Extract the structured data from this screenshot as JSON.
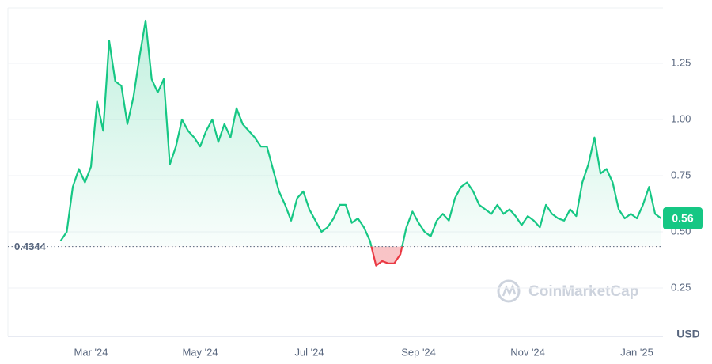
{
  "chart_data": {
    "type": "line",
    "categories": [
      null,
      null,
      null,
      null,
      null,
      "Mar '24",
      null,
      null,
      null,
      null,
      null,
      null,
      null,
      null,
      null,
      null,
      null,
      null,
      null,
      null,
      null,
      null,
      null,
      "May '24",
      null,
      null,
      null,
      null,
      null,
      null,
      null,
      null,
      null,
      null,
      null,
      null,
      null,
      null,
      null,
      null,
      null,
      "Jul '24",
      null,
      null,
      null,
      null,
      null,
      null,
      null,
      null,
      null,
      null,
      null,
      null,
      null,
      null,
      null,
      null,
      null,
      "Sep '24",
      null,
      null,
      null,
      null,
      null,
      null,
      null,
      null,
      null,
      null,
      null,
      null,
      null,
      null,
      null,
      null,
      null,
      "Nov '24",
      null,
      null,
      null,
      null,
      null,
      null,
      null,
      null,
      null,
      null,
      null,
      null,
      null,
      null,
      null,
      null,
      null,
      "Jan '25",
      null,
      null,
      null,
      null
    ],
    "values": [
      0.46,
      0.5,
      0.7,
      0.78,
      0.72,
      0.79,
      1.08,
      0.95,
      1.35,
      1.17,
      1.15,
      0.98,
      1.1,
      1.28,
      1.44,
      1.18,
      1.12,
      1.18,
      0.8,
      0.88,
      1.0,
      0.95,
      0.92,
      0.88,
      0.95,
      1.0,
      0.9,
      0.98,
      0.92,
      1.05,
      0.98,
      0.95,
      0.92,
      0.88,
      0.88,
      0.78,
      0.68,
      0.62,
      0.55,
      0.65,
      0.68,
      0.6,
      0.55,
      0.5,
      0.52,
      0.56,
      0.62,
      0.62,
      0.54,
      0.56,
      0.52,
      0.46,
      0.35,
      0.37,
      0.36,
      0.36,
      0.4,
      0.52,
      0.59,
      0.54,
      0.5,
      0.48,
      0.55,
      0.58,
      0.55,
      0.65,
      0.7,
      0.72,
      0.68,
      0.62,
      0.6,
      0.58,
      0.62,
      0.58,
      0.6,
      0.57,
      0.53,
      0.57,
      0.55,
      0.52,
      0.62,
      0.58,
      0.56,
      0.55,
      0.6,
      0.57,
      0.72,
      0.8,
      0.92,
      0.76,
      0.78,
      0.72,
      0.6,
      0.56,
      0.58,
      0.56,
      0.62,
      0.7,
      0.58,
      0.56
    ],
    "color": "#16c784",
    "negative_color": "#ea3943",
    "reference_value": 0.4344,
    "ylim": [
      0,
      1.5
    ],
    "yticks": [
      0.25,
      {
        "value": 0.5,
        "label": "0.50"
      },
      0.75,
      {
        "value": 1.0,
        "label": "1.00"
      },
      1.25
    ],
    "y_label": "USD",
    "grid": true,
    "watermark": "CoinMarketCap"
  }
}
